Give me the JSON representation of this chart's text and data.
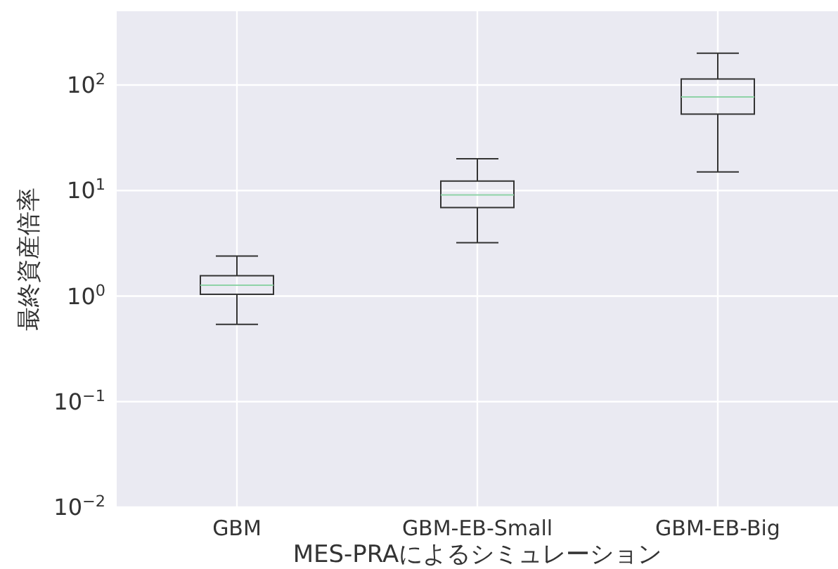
{
  "chart_data": {
    "type": "box",
    "xlabel": "MES-PRAによるシミュレーション",
    "ylabel": "最終資産倍率",
    "categories": [
      "GBM",
      "GBM-EB-Small",
      "GBM-EB-Big"
    ],
    "boxes": [
      {
        "low": 0.54,
        "q1": 1.04,
        "median": 1.27,
        "q3": 1.56,
        "high": 2.4
      },
      {
        "low": 3.2,
        "q1": 6.9,
        "median": 9.1,
        "q3": 12.3,
        "high": 20
      },
      {
        "low": 15,
        "q1": 53,
        "median": 77,
        "q3": 114,
        "high": 200
      }
    ],
    "color": "#333333",
    "log": true,
    "ylim": [
      0.01,
      500
    ],
    "yticks": [
      {
        "value": 0.01,
        "label": "10$^{−2}$"
      },
      {
        "value": 0.1,
        "label": "10$^{−1}$"
      },
      {
        "value": 1,
        "label": "10$^{0}$"
      },
      {
        "value": 10,
        "label": "10$^{1}$"
      },
      {
        "value": 100,
        "label": "10$^{2}$"
      }
    ],
    "grid": true
  }
}
